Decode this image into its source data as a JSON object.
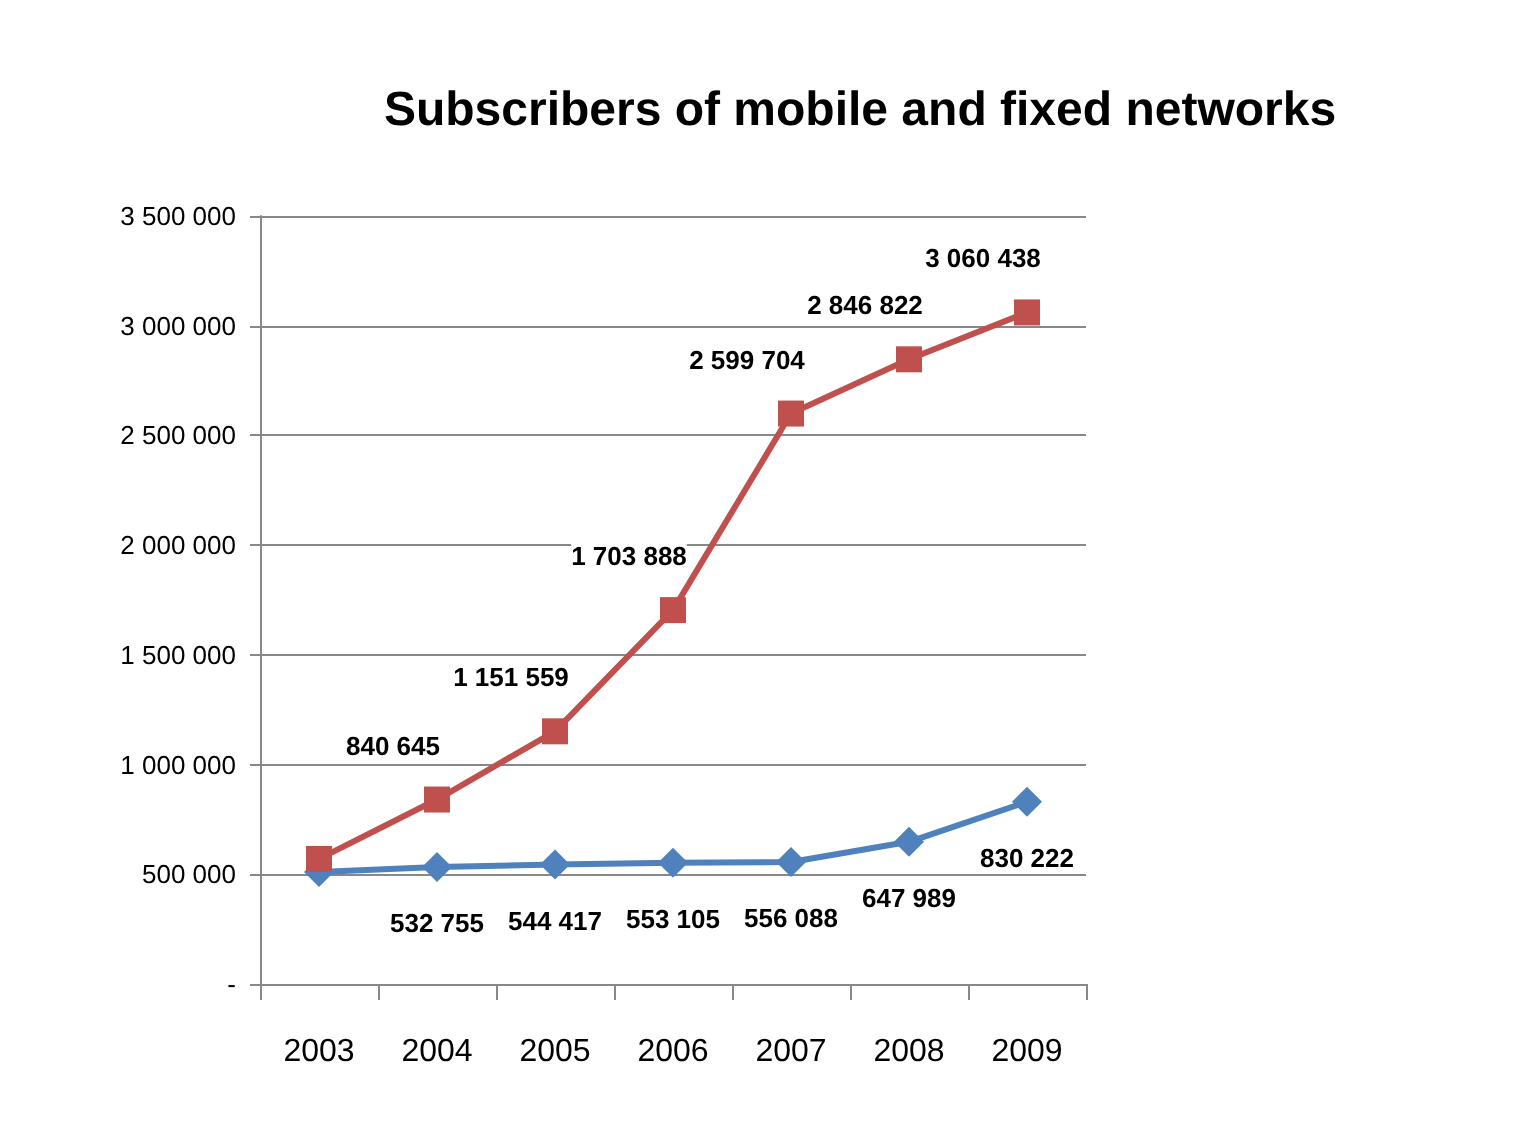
{
  "chart_data": {
    "type": "line",
    "title": "Subscribers of mobile and fixed networks",
    "categories": [
      "2003",
      "2004",
      "2005",
      "2006",
      "2007",
      "2008",
      "2009"
    ],
    "series": [
      {
        "color": "#4f81bd",
        "marker": "diamond",
        "values": [
          510000,
          532755,
          544417,
          553105,
          556088,
          647989,
          830222
        ],
        "value_labels": [
          null,
          "532 755",
          "544 417",
          "553 105",
          "556 088",
          "647 989",
          "830 222"
        ]
      },
      {
        "color": "#c0504d",
        "marker": "square",
        "values": [
          570000,
          840645,
          1151559,
          1703888,
          2599704,
          2846822,
          3060438
        ],
        "value_labels": [
          null,
          "840 645",
          "1 151 559",
          "1 703 888",
          "2 599 704",
          "2 846 822",
          "3 060 438"
        ]
      }
    ],
    "ylim": [
      0,
      3500000
    ],
    "yticks": [
      {
        "value": 0,
        "label": "-"
      },
      {
        "value": 500000,
        "label": "500 000"
      },
      {
        "value": 1000000,
        "label": "1 000 000"
      },
      {
        "value": 1500000,
        "label": "1 500 000"
      },
      {
        "value": 2000000,
        "label": "2 000 000"
      },
      {
        "value": 2500000,
        "label": "2 500 000"
      },
      {
        "value": 3000000,
        "label": "3 000 000"
      },
      {
        "value": 3500000,
        "label": "3 500 000"
      }
    ],
    "grid": "y",
    "line_style": "solid"
  }
}
